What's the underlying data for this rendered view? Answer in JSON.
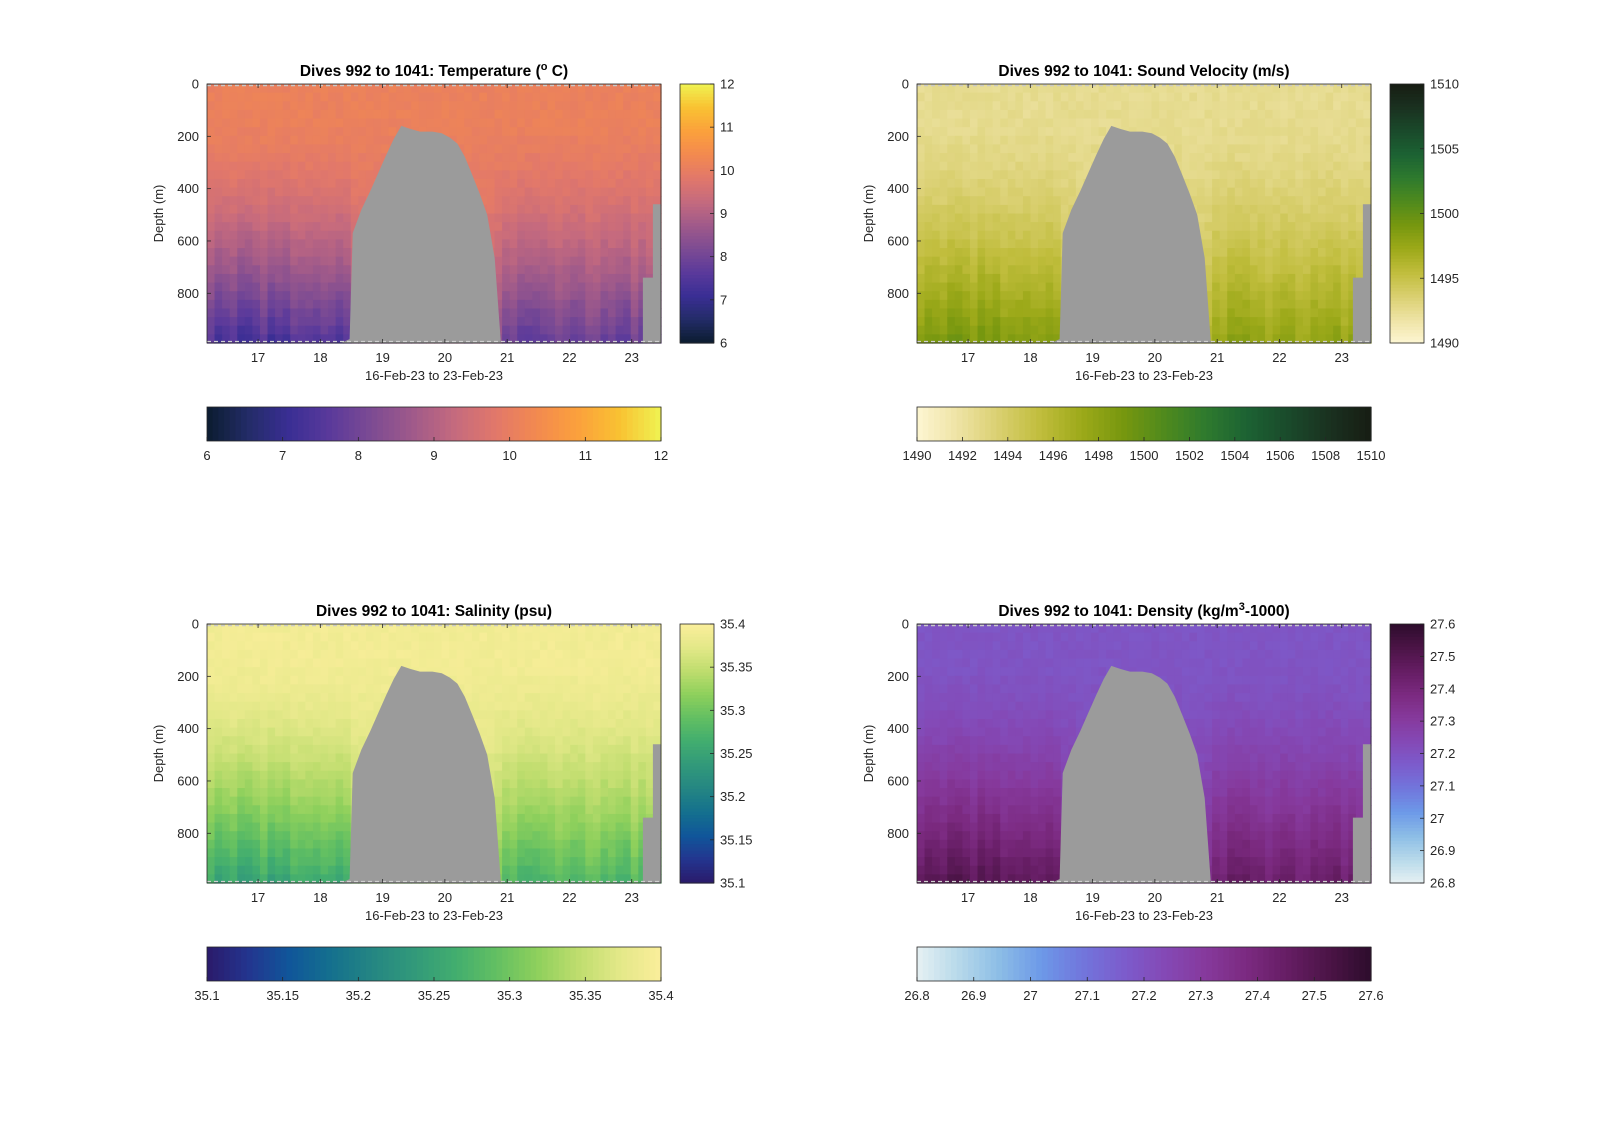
{
  "figure": {
    "background": "#ffffff",
    "mask_color": "#9b9b9b"
  },
  "chart_data": [
    {
      "type": "heatmap",
      "title_prefix": "Dives 992 to 1041: Temperature (",
      "title_sup": "o",
      "title_suffix": " C)",
      "xlabel": "16-Feb-23 to 23-Feb-23",
      "ylabel": "Depth (m)",
      "xticks": [
        "17",
        "18",
        "19",
        "20",
        "21",
        "22",
        "23"
      ],
      "yticks": [
        "0",
        "200",
        "400",
        "600",
        "800"
      ],
      "xlim": [
        16.18,
        23.47
      ],
      "ylim": [
        0,
        990
      ],
      "colorbar": {
        "min": 6,
        "max": 12,
        "ticks": [
          "6",
          "7",
          "8",
          "9",
          "10",
          "11",
          "12"
        ],
        "horizontal_ticks": [
          "6",
          "7",
          "8",
          "9",
          "10",
          "11",
          "12"
        ]
      },
      "colormap": [
        "#0b1c2f",
        "#232c68",
        "#3a2e94",
        "#5b3a9b",
        "#7d4b93",
        "#a05a8a",
        "#c56a7e",
        "#e2786a",
        "#f38a4f",
        "#fba13c",
        "#f9c232",
        "#eff352"
      ],
      "surface_value": 10.1,
      "deep_value": 7.1,
      "high_contrast": false
    },
    {
      "type": "heatmap",
      "title_prefix": "Dives 992 to 1041: Sound Velocity (m/s)",
      "title_sup": "",
      "title_suffix": "",
      "xlabel": "16-Feb-23 to 23-Feb-23",
      "ylabel": "Depth (m)",
      "xticks": [
        "17",
        "18",
        "19",
        "20",
        "21",
        "22",
        "23"
      ],
      "yticks": [
        "0",
        "200",
        "400",
        "600",
        "800"
      ],
      "xlim": [
        16.18,
        23.47
      ],
      "ylim": [
        0,
        990
      ],
      "colorbar": {
        "min": 1490,
        "max": 1510,
        "ticks": [
          "1490",
          "1495",
          "1500",
          "1505",
          "1510"
        ],
        "horizontal_ticks": [
          "1490",
          "1492",
          "1494",
          "1496",
          "1498",
          "1500",
          "1502",
          "1504",
          "1506",
          "1508",
          "1510"
        ]
      },
      "colormap": [
        "#fdf6d2",
        "#eee3a4",
        "#d9cf6f",
        "#c0bd3c",
        "#9ca919",
        "#77970f",
        "#4f8a1d",
        "#2e7a2e",
        "#1c6233",
        "#1a4a2b",
        "#1a3120",
        "#171d13"
      ],
      "surface_value": 1492.5,
      "deep_value": 1499.5,
      "high_contrast": false
    },
    {
      "type": "heatmap",
      "title_prefix": "Dives 992 to 1041: Salinity (psu)",
      "title_sup": "",
      "title_suffix": "",
      "xlabel": "16-Feb-23 to 23-Feb-23",
      "ylabel": "Depth (m)",
      "xticks": [
        "17",
        "18",
        "19",
        "20",
        "21",
        "22",
        "23"
      ],
      "yticks": [
        "0",
        "200",
        "400",
        "600",
        "800"
      ],
      "xlim": [
        16.18,
        23.47
      ],
      "ylim": [
        0,
        990
      ],
      "colorbar": {
        "min": 35.1,
        "max": 35.4,
        "ticks": [
          "35.1",
          "35.15",
          "35.2",
          "35.25",
          "35.3",
          "35.35",
          "35.4"
        ],
        "horizontal_ticks": [
          "35.1",
          "35.15",
          "35.2",
          "35.25",
          "35.3",
          "35.35",
          "35.4"
        ]
      },
      "colormap": [
        "#2a1a6b",
        "#23358f",
        "#10569a",
        "#14708e",
        "#248683",
        "#32997a",
        "#41ad6f",
        "#62bf62",
        "#8ed05c",
        "#bfdd6e",
        "#e3e888",
        "#fbee9b"
      ],
      "surface_value": 35.39,
      "deep_value": 35.24,
      "high_contrast": false
    },
    {
      "type": "heatmap",
      "title_prefix": "Dives 992 to 1041: Density (kg/m",
      "title_sup": "3",
      "title_suffix": "-1000)",
      "xlabel": "16-Feb-23 to 23-Feb-23",
      "ylabel": "Depth (m)",
      "xticks": [
        "17",
        "18",
        "19",
        "20",
        "21",
        "22",
        "23"
      ],
      "yticks": [
        "0",
        "200",
        "400",
        "600",
        "800"
      ],
      "xlim": [
        16.18,
        23.47
      ],
      "ylim": [
        0,
        990
      ],
      "colorbar": {
        "min": 26.8,
        "max": 27.6,
        "ticks": [
          "26.8",
          "26.9",
          "27",
          "27.1",
          "27.2",
          "27.3",
          "27.4",
          "27.5",
          "27.6"
        ],
        "horizontal_ticks": [
          "26.8",
          "26.9",
          "27",
          "27.1",
          "27.2",
          "27.3",
          "27.4",
          "27.5",
          "27.6"
        ]
      },
      "colormap": [
        "#e6f1f3",
        "#b7d9ea",
        "#8cbde6",
        "#6d99e8",
        "#7176dc",
        "#7c5ccc",
        "#8449b6",
        "#86399c",
        "#7b2a80",
        "#651d63",
        "#4b1446",
        "#2d0c2c"
      ],
      "surface_value": 27.19,
      "deep_value": 27.52,
      "high_contrast": true
    }
  ]
}
